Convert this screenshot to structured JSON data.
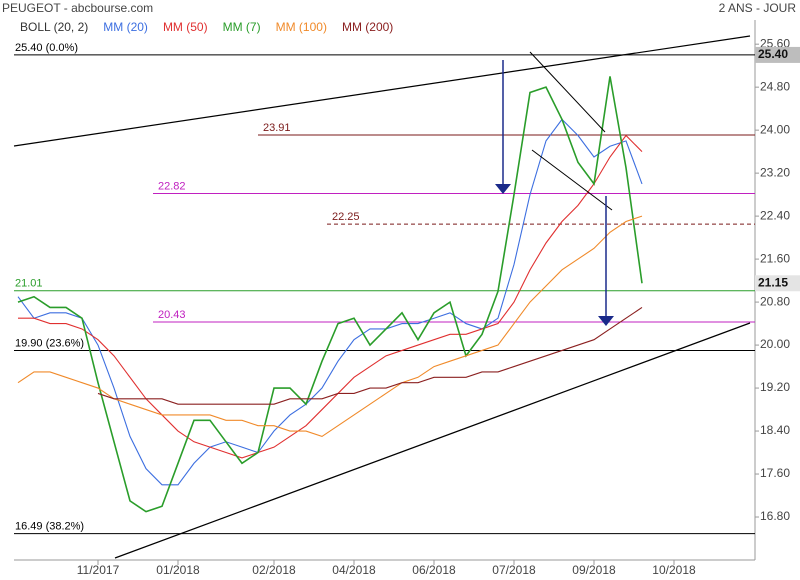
{
  "chart_data": {
    "type": "line",
    "title": "PEUGEOT - abcbourse.com",
    "subtitle": "2 ANS - JOUR",
    "categories": [
      null,
      null,
      null,
      null,
      null,
      "11/2017",
      null,
      null,
      null,
      null,
      "01/2018",
      null,
      null,
      null,
      null,
      null,
      "02/2018",
      null,
      null,
      null,
      null,
      "04/2018",
      null,
      null,
      null,
      null,
      "06/2018",
      null,
      null,
      null,
      null,
      "07/2018",
      null,
      null,
      null,
      null,
      "09/2018",
      null,
      null,
      null,
      null,
      "10/2018",
      null,
      null,
      null,
      null
    ],
    "series": [
      {
        "name": "BOLL (20, 2)",
        "color": "#333333"
      },
      {
        "name": "MM (20)",
        "color": "#3d6fe0",
        "values": [
          20.9,
          20.5,
          20.6,
          20.6,
          20.5,
          20.0,
          19.2,
          18.3,
          17.7,
          17.4,
          17.4,
          17.8,
          18.1,
          18.2,
          18.1,
          18.0,
          18.4,
          18.7,
          18.9,
          19.2,
          19.7,
          20.1,
          20.3,
          20.3,
          20.4,
          20.4,
          20.5,
          20.6,
          20.4,
          20.3,
          20.5,
          21.5,
          22.8,
          23.8,
          24.2,
          23.9,
          23.5,
          23.7,
          23.8,
          23.0,
          null,
          null,
          null,
          null,
          null,
          null
        ]
      },
      {
        "name": "MM (50)",
        "color": "#e03030",
        "values": [
          20.5,
          20.5,
          20.4,
          20.4,
          20.3,
          20.1,
          19.8,
          19.4,
          19.0,
          18.7,
          18.4,
          18.2,
          18.1,
          18.0,
          17.9,
          18.0,
          18.1,
          18.3,
          18.5,
          18.8,
          19.1,
          19.4,
          19.6,
          19.8,
          19.9,
          20.0,
          20.1,
          20.2,
          20.2,
          20.3,
          20.4,
          20.8,
          21.4,
          21.9,
          22.3,
          22.6,
          23.0,
          23.5,
          23.9,
          23.6,
          null,
          null,
          null,
          null,
          null,
          null
        ]
      },
      {
        "name": "MM (7)",
        "color": "#2a9d2a",
        "values": [
          20.8,
          20.9,
          20.7,
          20.7,
          20.5,
          19.3,
          18.2,
          17.1,
          16.9,
          17.0,
          17.8,
          18.6,
          18.6,
          18.2,
          17.8,
          18.0,
          19.2,
          19.2,
          18.9,
          19.7,
          20.4,
          20.5,
          20.0,
          20.3,
          20.6,
          20.1,
          20.6,
          20.8,
          19.8,
          20.2,
          21.0,
          22.8,
          24.7,
          24.8,
          24.2,
          23.4,
          23.0,
          25.0,
          23.3,
          21.15,
          null,
          null,
          null,
          null,
          null,
          null
        ]
      },
      {
        "name": "MM (100)",
        "color": "#f08a2a",
        "values": [
          19.3,
          19.5,
          19.5,
          19.4,
          19.3,
          19.2,
          19.0,
          18.9,
          18.8,
          18.7,
          18.7,
          18.7,
          18.7,
          18.6,
          18.6,
          18.5,
          18.5,
          18.4,
          18.4,
          18.3,
          18.5,
          18.7,
          18.9,
          19.1,
          19.3,
          19.4,
          19.6,
          19.7,
          19.8,
          19.9,
          20.0,
          20.4,
          20.8,
          21.1,
          21.4,
          21.6,
          21.8,
          22.1,
          22.3,
          22.4,
          null,
          null,
          null,
          null,
          null,
          null
        ]
      },
      {
        "name": "MM (200)",
        "color": "#8b2020",
        "values": [
          null,
          null,
          null,
          null,
          null,
          19.1,
          19.0,
          19.0,
          19.0,
          19.0,
          18.9,
          18.9,
          18.9,
          18.9,
          18.9,
          18.9,
          18.9,
          19.0,
          19.0,
          19.0,
          19.1,
          19.1,
          19.2,
          19.2,
          19.3,
          19.3,
          19.4,
          19.4,
          19.4,
          19.5,
          19.5,
          19.6,
          19.7,
          19.8,
          19.9,
          20.0,
          20.1,
          20.3,
          20.5,
          20.7,
          null,
          null,
          null,
          null,
          null,
          null
        ]
      }
    ],
    "ylim": [
      16.0,
      26.05
    ],
    "yticks": [
      {
        "value": 25.6,
        "label": "25.60"
      },
      {
        "value": 24.8,
        "label": "24.80"
      },
      {
        "value": 24.0,
        "label": "24.00"
      },
      {
        "value": 23.2,
        "label": "23.20"
      },
      {
        "value": 22.4,
        "label": "22.40"
      },
      {
        "value": 21.6,
        "label": "21.60"
      },
      {
        "value": 20.8,
        "label": "20.80"
      },
      {
        "value": 20.0,
        "label": "20.00"
      },
      {
        "value": 19.2,
        "label": "19.20"
      },
      {
        "value": 18.4,
        "label": "18.40"
      },
      {
        "value": 17.6,
        "label": "17.60"
      },
      {
        "value": 16.8,
        "label": "16.80"
      }
    ],
    "levels": [
      {
        "value": 25.4,
        "label": "25.40 (0.0%)",
        "color": "#000000"
      },
      {
        "value": 23.91,
        "label": "23.91",
        "color": "#7a1a1a"
      },
      {
        "value": 22.82,
        "label": "22.82",
        "color": "#c020c0"
      },
      {
        "value": 22.25,
        "label": "22.25",
        "color": "#7a1a1a",
        "dashed": true
      },
      {
        "value": 21.01,
        "label": "21.01",
        "color": "#2a9d2a"
      },
      {
        "value": 20.43,
        "label": "20.43",
        "color": "#c020c0"
      },
      {
        "value": 19.9,
        "label": "19.90 (23.6%)",
        "color": "#000000"
      },
      {
        "value": 16.49,
        "label": "16.49 (38.2%)",
        "color": "#000000"
      }
    ],
    "price_markers": [
      {
        "value": 25.4,
        "label": "25.40",
        "color": "#bdbdbd"
      },
      {
        "value": 21.15,
        "label": "21.15",
        "color": "#e4e4e4"
      }
    ]
  }
}
